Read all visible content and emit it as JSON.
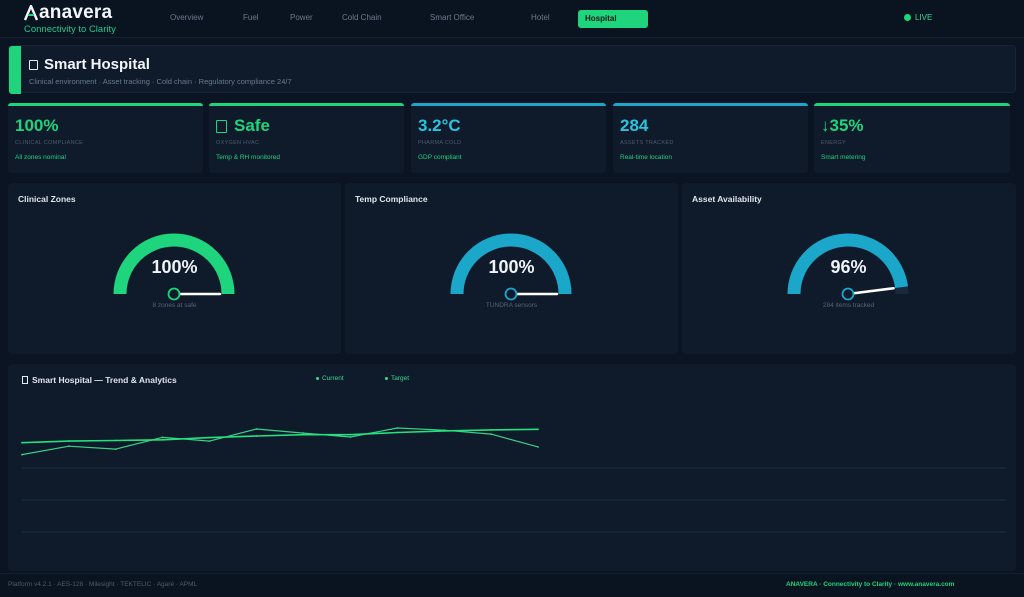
{
  "brand": {
    "name": "anavera",
    "tagline": "Connectivity to Clarity"
  },
  "nav": {
    "links": [
      "Overview",
      "Fuel",
      "Power",
      "Cold Chain",
      "Smart Office",
      "Hotel"
    ],
    "active": "Hospital",
    "live": "LIVE"
  },
  "hero": {
    "title": "Smart Hospital",
    "subtitle": "Clinical environment · Asset tracking · Cold chain · Regulatory compliance 24/7"
  },
  "kpis": [
    {
      "value": "100%",
      "label": "CLINICAL COMPLIANCE",
      "sub": "All zones nominal",
      "accent": "#1ed47d"
    },
    {
      "value": "Safe",
      "label": "OXYGEN HVAC",
      "sub": "Temp & RH monitored",
      "accent": "#1ed47d"
    },
    {
      "value": "3.2°C",
      "label": "PHARMA COLD",
      "sub": "GDP compliant",
      "accent": "#1ba7c9"
    },
    {
      "value": "284",
      "label": "ASSETS TRACKED",
      "sub": "Real-time location",
      "accent": "#1ba7c9"
    },
    {
      "value": "↓35%",
      "label": "ENERGY",
      "sub": "Smart metering",
      "accent": "#1ed47d"
    }
  ],
  "gauges": [
    {
      "title": "Clinical Zones",
      "value": "100%",
      "percent": 100,
      "sub": "8 zones at safe",
      "color": "#1ed47d"
    },
    {
      "title": "Temp Compliance",
      "value": "100%",
      "percent": 100,
      "sub": "TUNDRA sensors",
      "color": "#1ba7c9"
    },
    {
      "title": "Asset Availability",
      "value": "96%",
      "percent": 96,
      "sub": "284 items tracked",
      "color": "#1ba7c9"
    }
  ],
  "trend": {
    "title": "Smart Hospital — Trend & Analytics",
    "legend": [
      "Current",
      "Target"
    ]
  },
  "chart_data": {
    "type": "line",
    "x": [
      0,
      1,
      2,
      3,
      4,
      5,
      6,
      7,
      8,
      9,
      10,
      11
    ],
    "series": [
      {
        "name": "Current",
        "values": [
          84.2,
          86.8,
          85.9,
          89.6,
          88.4,
          92.2,
          90.9,
          89.7,
          92.5,
          91.8,
          90.6,
          86.6
        ]
      },
      {
        "name": "Target",
        "values": [
          87.9,
          88.4,
          88.6,
          88.8,
          89.5,
          90.0,
          90.4,
          90.4,
          91.1,
          91.6,
          91.9,
          92.1
        ]
      }
    ],
    "ylim": [
      50,
      100
    ],
    "grid": true
  },
  "footer": {
    "left": "Platform v4.2.1 · AES-128 · Milesight · TEKTELIC · Agaré · APML",
    "right": "ANAVERA · Connectivity to Clarity · www.anavera.com"
  }
}
